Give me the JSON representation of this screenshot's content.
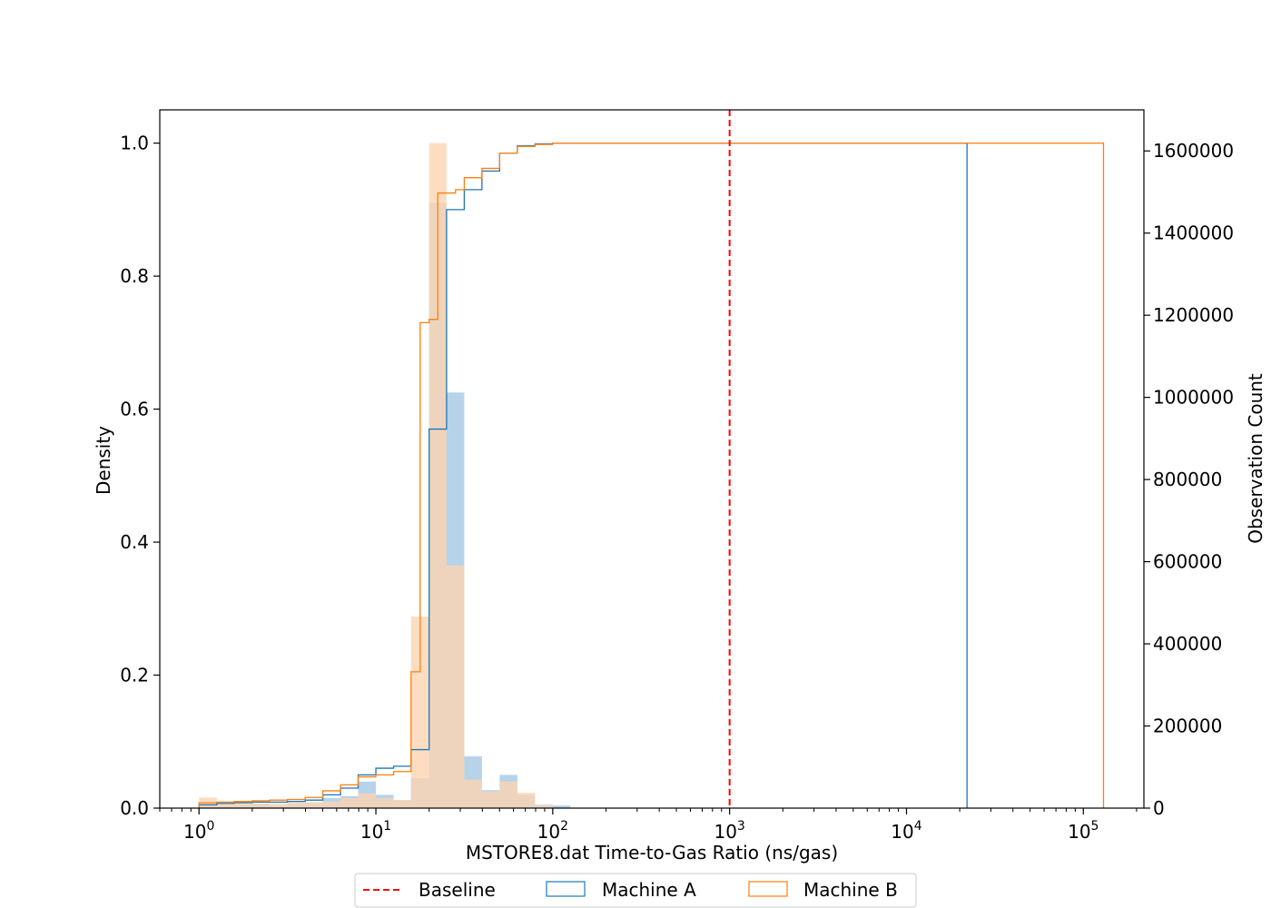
{
  "chart_data": {
    "type": "histogram",
    "xlabel": "MSTORE8.dat Time-to-Gas Ratio (ns/gas)",
    "ylabel_left": "Density",
    "ylabel_right": "Observation Count",
    "xscale": "log",
    "xlim": [
      0.6,
      220000
    ],
    "ylim_left": [
      0,
      1.05
    ],
    "ylim_right": [
      0,
      1700000
    ],
    "x_ticks": [
      {
        "value": 1,
        "base": "10",
        "exp": "0"
      },
      {
        "value": 10,
        "base": "10",
        "exp": "1"
      },
      {
        "value": 100,
        "base": "10",
        "exp": "2"
      },
      {
        "value": 1000,
        "base": "10",
        "exp": "3"
      },
      {
        "value": 10000,
        "base": "10",
        "exp": "4"
      },
      {
        "value": 100000,
        "base": "10",
        "exp": "5"
      }
    ],
    "y_ticks_left": [
      "0.0",
      "0.2",
      "0.4",
      "0.6",
      "0.8",
      "1.0"
    ],
    "y_ticks_right": [
      "0",
      "200000",
      "400000",
      "600000",
      "800000",
      "1000000",
      "1200000",
      "1400000",
      "1600000"
    ],
    "baseline": {
      "name": "Baseline",
      "x": 1000,
      "color": "#ff0000"
    },
    "series": [
      {
        "name": "Machine A",
        "color": "#1f77b4",
        "fill": "#a9cbe6",
        "bars": [
          [
            1.0,
            1.26,
            0.005
          ],
          [
            1.26,
            1.58,
            0.003
          ],
          [
            1.58,
            2.0,
            0.005
          ],
          [
            2.0,
            2.51,
            0.007
          ],
          [
            2.51,
            3.16,
            0.004
          ],
          [
            3.16,
            3.98,
            0.007
          ],
          [
            3.98,
            5.01,
            0.008
          ],
          [
            5.01,
            6.31,
            0.015
          ],
          [
            6.31,
            7.94,
            0.018
          ],
          [
            7.94,
            10.0,
            0.04
          ],
          [
            10.0,
            12.6,
            0.02
          ],
          [
            12.6,
            15.8,
            0.012
          ],
          [
            15.8,
            20.0,
            0.045
          ],
          [
            20.0,
            25.1,
            0.91
          ],
          [
            25.1,
            31.6,
            0.625
          ],
          [
            31.6,
            39.8,
            0.078
          ],
          [
            39.8,
            50.1,
            0.027
          ],
          [
            50.1,
            63.1,
            0.05
          ],
          [
            63.1,
            79.4,
            0.02
          ],
          [
            79.4,
            100,
            0.005
          ],
          [
            100,
            126,
            0.004
          ]
        ],
        "cdf": [
          [
            1.0,
            0.005
          ],
          [
            1.26,
            0.007
          ],
          [
            1.58,
            0.008
          ],
          [
            2.0,
            0.009
          ],
          [
            2.51,
            0.009
          ],
          [
            3.16,
            0.01
          ],
          [
            3.98,
            0.012
          ],
          [
            5.01,
            0.02
          ],
          [
            6.31,
            0.03
          ],
          [
            7.94,
            0.05
          ],
          [
            10.0,
            0.06
          ],
          [
            12.6,
            0.063
          ],
          [
            15.8,
            0.088
          ],
          [
            20.0,
            0.57
          ],
          [
            25.1,
            0.9
          ],
          [
            31.6,
            0.93
          ],
          [
            39.8,
            0.958
          ],
          [
            50.1,
            0.985
          ],
          [
            63.1,
            0.996
          ],
          [
            79.4,
            0.999
          ],
          [
            100,
            1.0
          ],
          [
            22000,
            1.0
          ]
        ]
      },
      {
        "name": "Machine B",
        "color": "#ff7f0e",
        "fill": "#fdd5b1",
        "bars": [
          [
            1.0,
            1.26,
            0.016
          ],
          [
            1.26,
            1.58,
            0.008
          ],
          [
            1.58,
            2.0,
            0.007
          ],
          [
            2.0,
            2.51,
            0.007
          ],
          [
            2.51,
            3.16,
            0.007
          ],
          [
            3.16,
            3.98,
            0.008
          ],
          [
            3.98,
            5.01,
            0.009
          ],
          [
            5.01,
            6.31,
            0.01
          ],
          [
            6.31,
            7.94,
            0.015
          ],
          [
            7.94,
            10.0,
            0.022
          ],
          [
            10.0,
            12.6,
            0.015
          ],
          [
            12.6,
            15.8,
            0.012
          ],
          [
            15.8,
            20.0,
            0.288
          ],
          [
            20.0,
            25.1,
            1.0
          ],
          [
            25.1,
            31.6,
            0.365
          ],
          [
            31.6,
            39.8,
            0.043
          ],
          [
            39.8,
            50.1,
            0.025
          ],
          [
            50.1,
            63.1,
            0.04
          ],
          [
            63.1,
            79.4,
            0.023
          ],
          [
            79.4,
            100,
            0.004
          ]
        ],
        "cdf": [
          [
            1.0,
            0.008
          ],
          [
            1.26,
            0.009
          ],
          [
            1.58,
            0.01
          ],
          [
            2.0,
            0.011
          ],
          [
            2.51,
            0.012
          ],
          [
            3.16,
            0.013
          ],
          [
            3.98,
            0.016
          ],
          [
            5.01,
            0.026
          ],
          [
            6.31,
            0.035
          ],
          [
            7.94,
            0.047
          ],
          [
            10.0,
            0.05
          ],
          [
            12.6,
            0.055
          ],
          [
            15.8,
            0.205
          ],
          [
            17.8,
            0.73
          ],
          [
            20.0,
            0.735
          ],
          [
            22.4,
            0.925
          ],
          [
            28.2,
            0.93
          ],
          [
            31.6,
            0.948
          ],
          [
            39.8,
            0.962
          ],
          [
            50.1,
            0.985
          ],
          [
            63.1,
            0.995
          ],
          [
            79.4,
            0.998
          ],
          [
            100,
            1.0
          ],
          [
            130000,
            1.0
          ]
        ]
      }
    ],
    "legend": {
      "placement": "bottom-center",
      "entries": [
        "Baseline",
        "Machine A",
        "Machine B"
      ]
    }
  }
}
